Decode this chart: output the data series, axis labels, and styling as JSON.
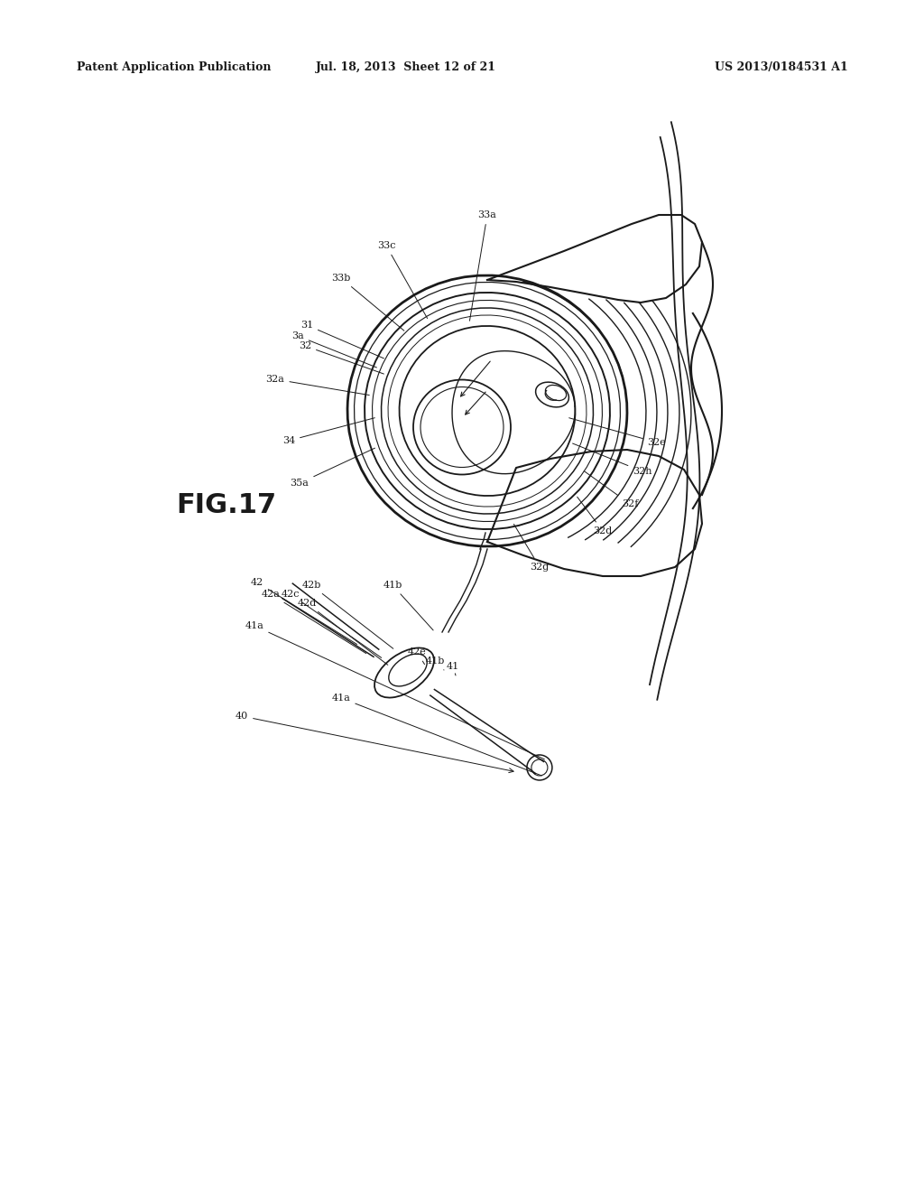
{
  "background_color": "#ffffff",
  "header_left": "Patent Application Publication",
  "header_mid": "Jul. 18, 2013  Sheet 12 of 21",
  "header_right": "US 2013/0184531 A1",
  "fig_label": "FIG.17",
  "line_color": "#1a1a1a",
  "text_color": "#1a1a1a",
  "label_fs": 8.0,
  "fig_label_fs": 22,
  "header_fs": 9
}
